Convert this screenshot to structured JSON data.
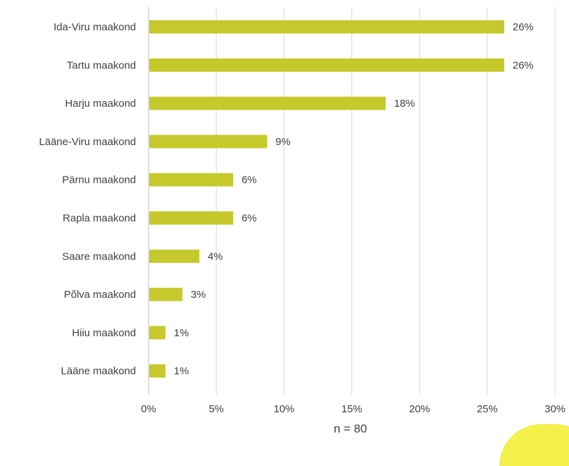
{
  "chart_data": {
    "type": "bar",
    "orientation": "horizontal",
    "categories": [
      "Ida-Viru maakond",
      "Tartu maakond",
      "Harju maakond",
      "Lääne-Viru maakond",
      "Pärnu maakond",
      "Rapla maakond",
      "Saare maakond",
      "Põlva maakond",
      "Hiiu maakond",
      "Lääne maakond"
    ],
    "values": [
      26.25,
      26.25,
      17.5,
      8.75,
      6.25,
      6.25,
      3.75,
      2.5,
      1.25,
      1.25
    ],
    "data_labels": [
      "26%",
      "26%",
      "18%",
      "9%",
      "6%",
      "6%",
      "4%",
      "3%",
      "1%",
      "1%"
    ],
    "x_ticks": [
      0,
      5,
      10,
      15,
      20,
      25,
      30
    ],
    "x_tick_labels": [
      "0%",
      "5%",
      "10%",
      "15%",
      "20%",
      "25%",
      "30%"
    ],
    "xlim": [
      0,
      30
    ],
    "xlabel": "n = 80",
    "grid": "vertical",
    "legend": "none",
    "bar_color": "#c5c92c"
  },
  "decor": {
    "blob_color": "#f4f04c"
  }
}
